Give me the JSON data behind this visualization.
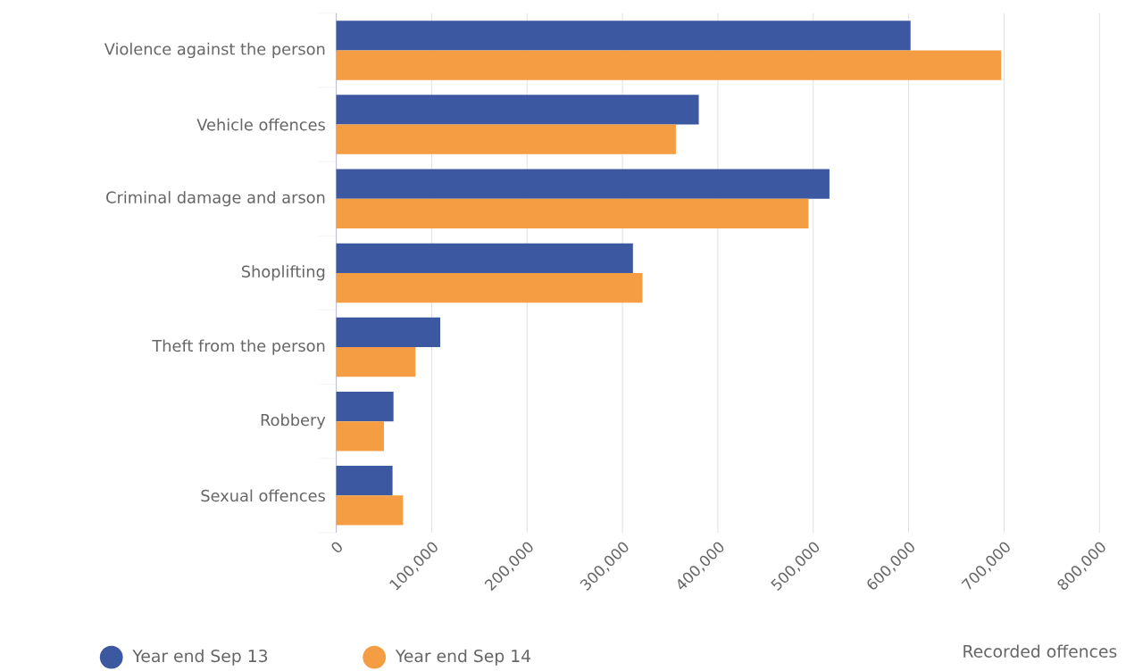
{
  "chart_data": {
    "type": "bar",
    "orientation": "horizontal",
    "xlabel": "Recorded offences",
    "categories": [
      "Violence against the person",
      "Vehicle offences",
      "Criminal damage and arson",
      "Shoplifting",
      "Theft from the person",
      "Robbery",
      "Sexual offences"
    ],
    "series": [
      {
        "name": "Year end Sep 13",
        "color": "#3c58a0",
        "values": [
          602000,
          380000,
          517000,
          311000,
          109000,
          60000,
          59000
        ]
      },
      {
        "name": "Year end Sep 14",
        "color": "#f59d42",
        "values": [
          697000,
          356000,
          495000,
          321000,
          83000,
          50000,
          70000
        ]
      }
    ],
    "xlim": [
      0,
      800000
    ],
    "xticks": [
      0,
      {
        "value": 100000,
        "label": "100,000"
      },
      {
        "value": 200000,
        "label": "200,000"
      },
      {
        "value": 300000,
        "label": "300,000"
      },
      {
        "value": 400000,
        "label": "400,000"
      },
      {
        "value": 500000,
        "label": "500,000"
      },
      {
        "value": 600000,
        "label": "600,000"
      },
      {
        "value": 700000,
        "label": "700,000"
      },
      {
        "value": 800000,
        "label": "800,000"
      }
    ],
    "grid": "x",
    "legend": "bottom"
  }
}
